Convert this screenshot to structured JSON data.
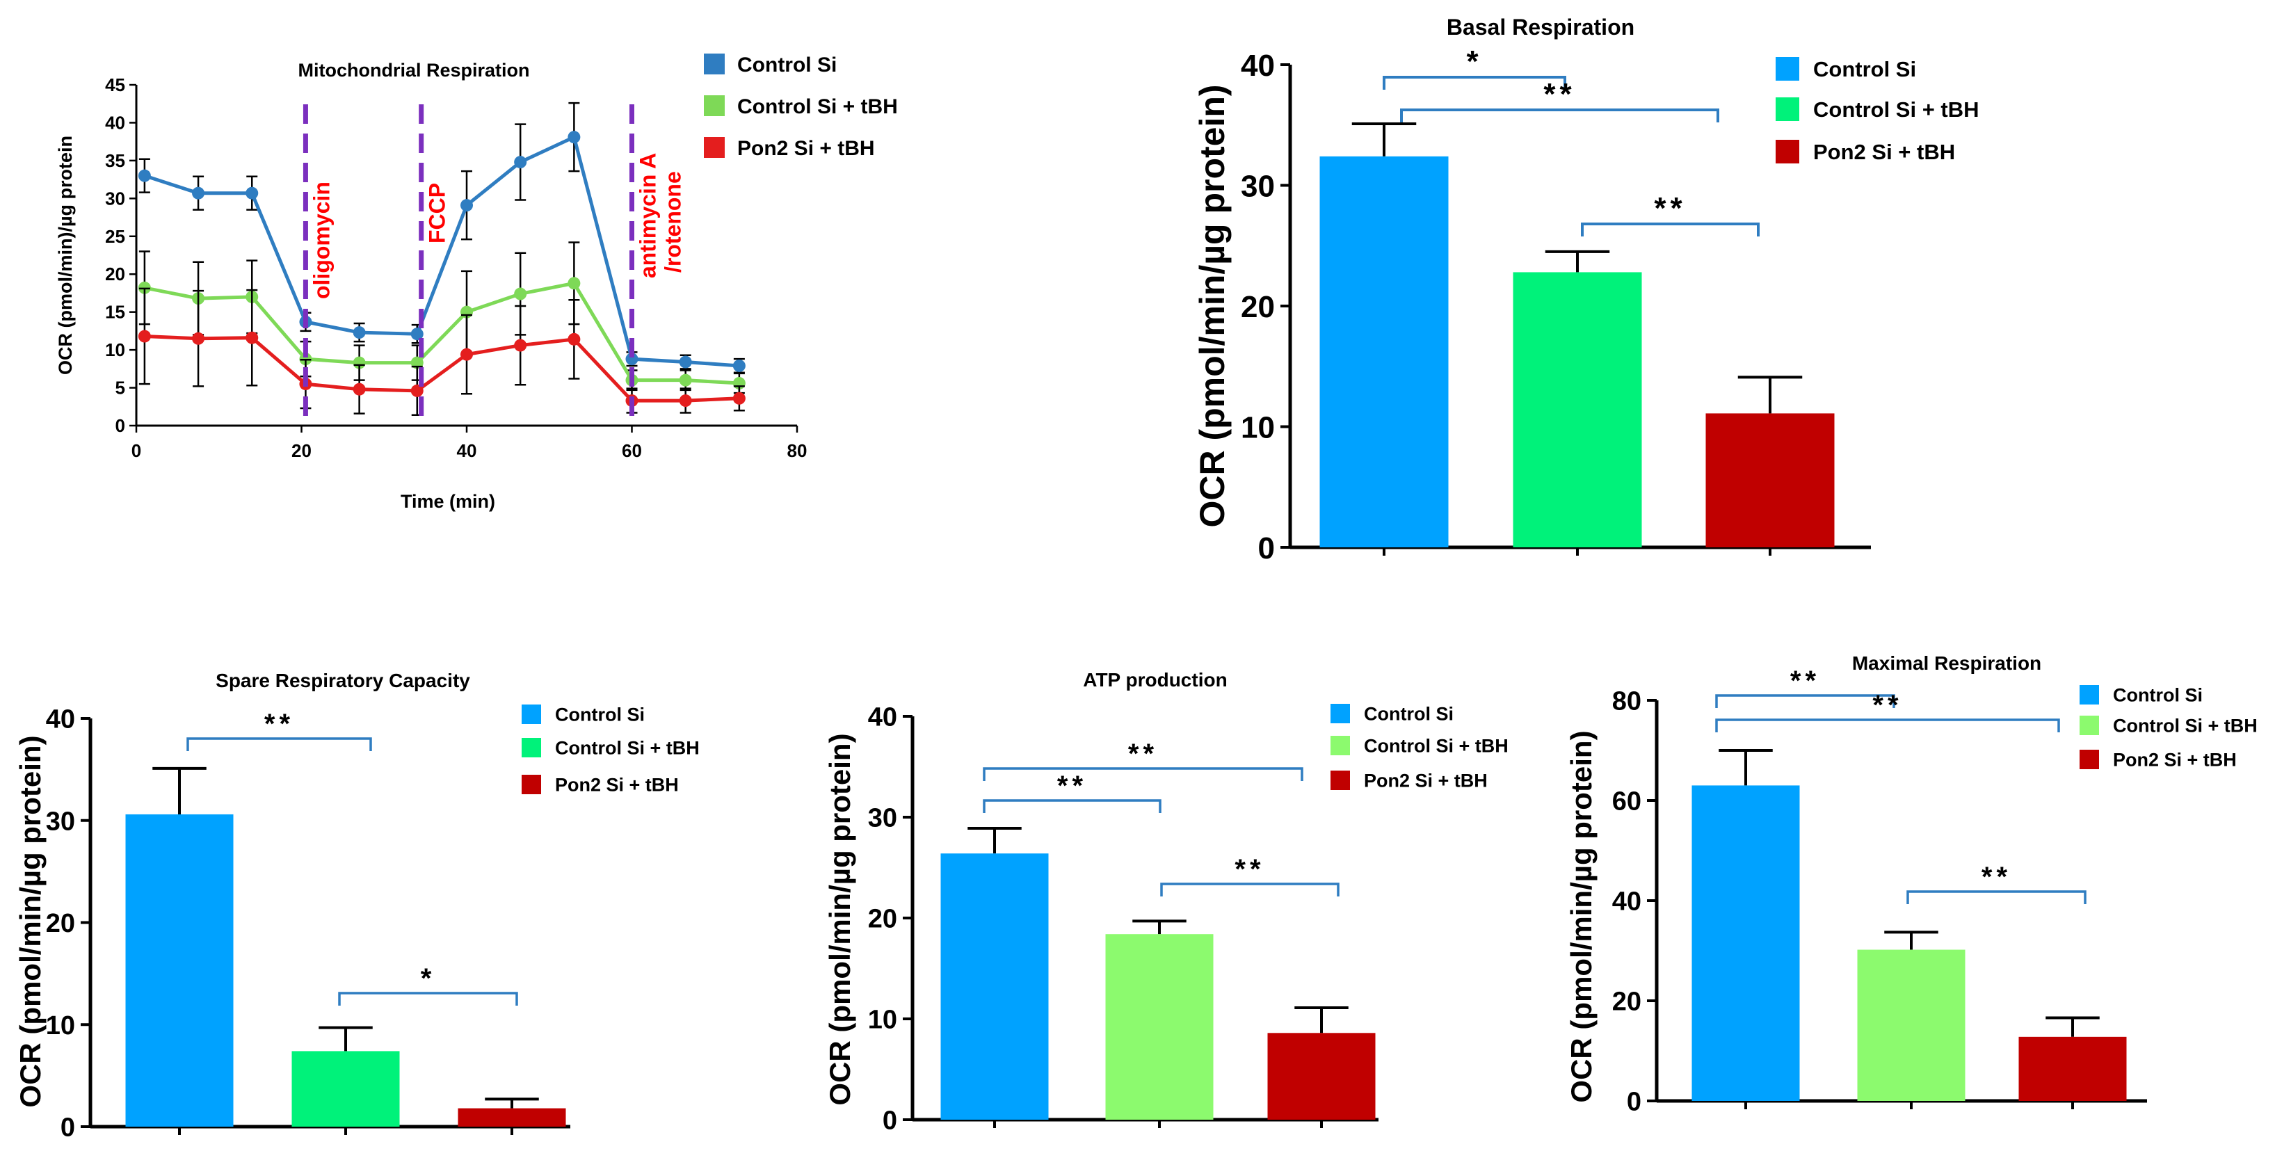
{
  "chart_data": [
    {
      "id": "mito",
      "type": "line",
      "title": "Mitochondrial Respiration",
      "xlabel": "Time (min)",
      "ylabel": "OCR (pmol/min)/µg protein",
      "xlim": [
        0,
        80
      ],
      "ylim": [
        0,
        45
      ],
      "xticks": [
        0,
        20,
        40,
        60,
        80
      ],
      "yticks": [
        0,
        5,
        10,
        15,
        20,
        25,
        30,
        35,
        40,
        45
      ],
      "x": [
        1,
        7.5,
        14,
        20.5,
        27,
        34,
        40,
        46.5,
        53,
        60,
        66.5,
        73
      ],
      "series": [
        {
          "name": "Control Si",
          "color": "#2F7DC1",
          "values": [
            33,
            30.7,
            30.7,
            13.7,
            12.3,
            12.1,
            29.1,
            34.8,
            38.1,
            8.8,
            8.4,
            7.9
          ],
          "errors": [
            2.2,
            2.2,
            2.2,
            1.2,
            1.2,
            1.2,
            4.5,
            5.0,
            4.5,
            0.9,
            0.9,
            0.9
          ]
        },
        {
          "name": "Control Si + tBH",
          "color": "#7ED957",
          "values": [
            18.2,
            16.8,
            17.0,
            8.8,
            8.3,
            8.3,
            15.0,
            17.4,
            18.8,
            6.0,
            6.0,
            5.6
          ],
          "errors": [
            4.8,
            4.8,
            4.8,
            2.3,
            2.3,
            2.3,
            5.4,
            5.4,
            5.4,
            1.3,
            1.3,
            1.3
          ]
        },
        {
          "name": "Pon2 Si + tBH",
          "color": "#E41E1E",
          "values": [
            11.8,
            11.5,
            11.6,
            5.5,
            4.8,
            4.6,
            9.4,
            10.6,
            11.4,
            3.3,
            3.3,
            3.6
          ],
          "errors": [
            6.3,
            6.3,
            6.3,
            3.2,
            3.2,
            3.2,
            5.2,
            5.2,
            5.2,
            1.6,
            1.6,
            1.6
          ]
        }
      ],
      "annotations": [
        {
          "x": 20.5,
          "label": "oligomycin"
        },
        {
          "x": 34.5,
          "label": "FCCP"
        },
        {
          "x": 60,
          "label": "antimycin A",
          "label2": "/rotenone"
        }
      ],
      "legend": "top-right"
    },
    {
      "id": "basal",
      "type": "bar",
      "title": "Basal Respiration",
      "ylabel": "OCR (pmol/min/µg protein)",
      "ylim": [
        0,
        40
      ],
      "yticks": [
        0,
        10,
        20,
        30,
        40
      ],
      "categories": [
        "Control Si",
        "Control Si + tBH",
        "Pon2 Si + tBH"
      ],
      "values": [
        32.4,
        22.8,
        11.1
      ],
      "errors": [
        2.7,
        1.7,
        3.0
      ],
      "colors": [
        "#00A2FF",
        "#00F27A",
        "#C00000"
      ],
      "significance": [
        {
          "from": 0,
          "to": 1,
          "label": "*"
        },
        {
          "from": 0,
          "to": 2,
          "label": "**"
        },
        {
          "from": 1,
          "to": 2,
          "label": "**"
        }
      ],
      "legend": "top-right"
    },
    {
      "id": "spare",
      "type": "bar",
      "title": "Spare Respiratory Capacity",
      "ylabel": "OCR (pmol/min/µg protein)",
      "ylim": [
        0,
        40
      ],
      "yticks": [
        0,
        10,
        20,
        30,
        40
      ],
      "categories": [
        "Control Si",
        "Control Si + tBH",
        "Pon2 Si + tBH"
      ],
      "values": [
        30.6,
        7.4,
        1.8
      ],
      "errors": [
        4.5,
        2.3,
        0.9
      ],
      "colors": [
        "#00A2FF",
        "#00F27A",
        "#C00000"
      ],
      "significance": [
        {
          "from": 0,
          "to": 1,
          "label": "**"
        },
        {
          "from": 1,
          "to": 2,
          "label": "*"
        }
      ],
      "legend": "top-right"
    },
    {
      "id": "atp",
      "type": "bar",
      "title": "ATP production",
      "ylabel": "OCR (pmol/min/µg protein)",
      "ylim": [
        0,
        40
      ],
      "yticks": [
        0,
        10,
        20,
        30,
        40
      ],
      "categories": [
        "Control Si",
        "Control Si + tBH",
        "Pon2 Si + tBH"
      ],
      "values": [
        26.4,
        18.4,
        8.6
      ],
      "errors": [
        2.5,
        1.3,
        2.5
      ],
      "colors": [
        "#00A2FF",
        "#8CFA6E",
        "#C00000"
      ],
      "significance": [
        {
          "from": 0,
          "to": 1,
          "label": "**"
        },
        {
          "from": 0,
          "to": 2,
          "label": "**"
        },
        {
          "from": 1,
          "to": 2,
          "label": "**"
        }
      ],
      "legend": "top-right"
    },
    {
      "id": "maximal",
      "type": "bar",
      "title": "Maximal Respiration",
      "ylabel": "OCR (pmol/min/µg protein)",
      "ylim": [
        0,
        80
      ],
      "yticks": [
        0,
        20,
        40,
        60,
        80
      ],
      "categories": [
        "Control Si",
        "Control Si + tBH",
        "Pon2 Si + tBH"
      ],
      "values": [
        63.0,
        30.2,
        12.8
      ],
      "errors": [
        7.0,
        3.5,
        3.8
      ],
      "colors": [
        "#00A2FF",
        "#8CFA6E",
        "#C00000"
      ],
      "significance": [
        {
          "from": 0,
          "to": 1,
          "label": "**"
        },
        {
          "from": 0,
          "to": 2,
          "label": "**"
        },
        {
          "from": 1,
          "to": 2,
          "label": "**"
        }
      ],
      "legend": "top-right"
    }
  ]
}
